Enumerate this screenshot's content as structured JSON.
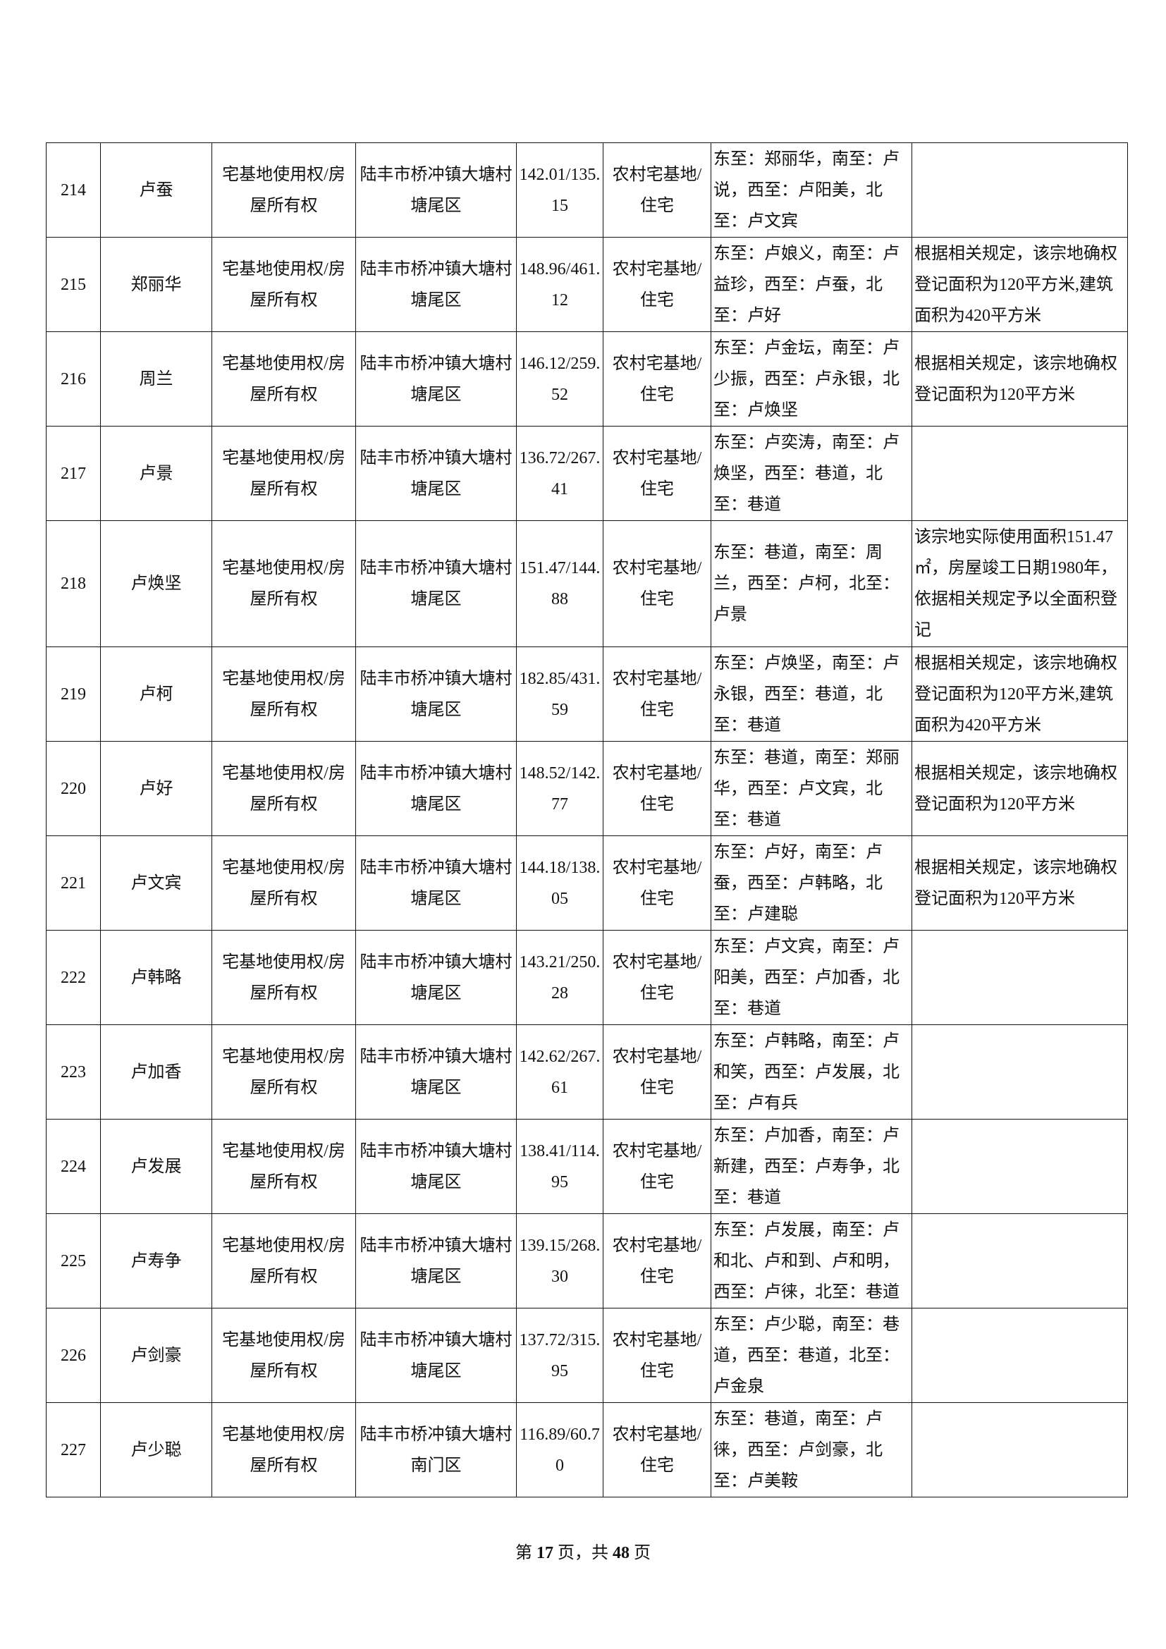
{
  "rows": [
    {
      "no": "214",
      "name": "卢蚕",
      "right_type": "宅基地使用权/房屋所有权",
      "location": "陆丰市桥冲镇大塘村塘尾区",
      "area": "142.01/135.15",
      "use": "农村宅基地/住宅",
      "boundary": "东至：郑丽华，南至：卢说，西至：卢阳美，北至：卢文宾",
      "note": ""
    },
    {
      "no": "215",
      "name": "郑丽华",
      "right_type": "宅基地使用权/房屋所有权",
      "location": "陆丰市桥冲镇大塘村塘尾区",
      "area": "148.96/461.12",
      "use": "农村宅基地/住宅",
      "boundary": "东至：卢娘义，南至：卢益珍，西至：卢蚕，北至：卢好",
      "note": "根据相关规定，该宗地确权登记面积为120平方米,建筑面积为420平方米"
    },
    {
      "no": "216",
      "name": "周兰",
      "right_type": "宅基地使用权/房屋所有权",
      "location": "陆丰市桥冲镇大塘村塘尾区",
      "area": "146.12/259.52",
      "use": "农村宅基地/住宅",
      "boundary": "东至：卢金坛，南至：卢少振，西至：卢永银，北至：卢焕坚",
      "note": "根据相关规定，该宗地确权登记面积为120平方米"
    },
    {
      "no": "217",
      "name": "卢景",
      "right_type": "宅基地使用权/房屋所有权",
      "location": "陆丰市桥冲镇大塘村塘尾区",
      "area": "136.72/267.41",
      "use": "农村宅基地/住宅",
      "boundary": "东至：卢奕涛，南至：卢焕坚，西至：巷道，北至：巷道",
      "note": ""
    },
    {
      "no": "218",
      "name": "卢焕坚",
      "right_type": "宅基地使用权/房屋所有权",
      "location": "陆丰市桥冲镇大塘村塘尾区",
      "area": "151.47/144.88",
      "use": "农村宅基地/住宅",
      "boundary": "东至：巷道，南至：周兰，西至：卢柯，北至：卢景",
      "note": "该宗地实际使用面积151.47㎡，房屋竣工日期1980年，依据相关规定予以全面积登记"
    },
    {
      "no": "219",
      "name": "卢柯",
      "right_type": "宅基地使用权/房屋所有权",
      "location": "陆丰市桥冲镇大塘村塘尾区",
      "area": "182.85/431.59",
      "use": "农村宅基地/住宅",
      "boundary": "东至：卢焕坚，南至：卢永银，西至：巷道，北至：巷道",
      "note": "根据相关规定，该宗地确权登记面积为120平方米,建筑面积为420平方米"
    },
    {
      "no": "220",
      "name": "卢好",
      "right_type": "宅基地使用权/房屋所有权",
      "location": "陆丰市桥冲镇大塘村塘尾区",
      "area": "148.52/142.77",
      "use": "农村宅基地/住宅",
      "boundary": "东至：巷道，南至：郑丽华，西至：卢文宾，北至：巷道",
      "note": "根据相关规定，该宗地确权登记面积为120平方米"
    },
    {
      "no": "221",
      "name": "卢文宾",
      "right_type": "宅基地使用权/房屋所有权",
      "location": "陆丰市桥冲镇大塘村塘尾区",
      "area": "144.18/138.05",
      "use": "农村宅基地/住宅",
      "boundary": "东至：卢好，南至：卢蚕，西至：卢韩略，北至：卢建聪",
      "note": "根据相关规定，该宗地确权登记面积为120平方米"
    },
    {
      "no": "222",
      "name": "卢韩略",
      "right_type": "宅基地使用权/房屋所有权",
      "location": "陆丰市桥冲镇大塘村塘尾区",
      "area": "143.21/250.28",
      "use": "农村宅基地/住宅",
      "boundary": "东至：卢文宾，南至：卢阳美，西至：卢加香，北至：巷道",
      "note": ""
    },
    {
      "no": "223",
      "name": "卢加香",
      "right_type": "宅基地使用权/房屋所有权",
      "location": "陆丰市桥冲镇大塘村塘尾区",
      "area": "142.62/267.61",
      "use": "农村宅基地/住宅",
      "boundary": "东至：卢韩略，南至：卢和笑，西至：卢发展，北至：卢有兵",
      "note": ""
    },
    {
      "no": "224",
      "name": "卢发展",
      "right_type": "宅基地使用权/房屋所有权",
      "location": "陆丰市桥冲镇大塘村塘尾区",
      "area": "138.41/114.95",
      "use": "农村宅基地/住宅",
      "boundary": "东至：卢加香，南至：卢新建，西至：卢寿争，北至：巷道",
      "note": ""
    },
    {
      "no": "225",
      "name": "卢寿争",
      "right_type": "宅基地使用权/房屋所有权",
      "location": "陆丰市桥冲镇大塘村塘尾区",
      "area": "139.15/268.30",
      "use": "农村宅基地/住宅",
      "boundary": "东至：卢发展，南至：卢和北、卢和到、卢和明，西至：卢徕，北至：巷道",
      "note": ""
    },
    {
      "no": "226",
      "name": "卢剑豪",
      "right_type": "宅基地使用权/房屋所有权",
      "location": "陆丰市桥冲镇大塘村塘尾区",
      "area": "137.72/315.95",
      "use": "农村宅基地/住宅",
      "boundary": "东至：卢少聪，南至：巷道，西至：巷道，北至：卢金泉",
      "note": ""
    },
    {
      "no": "227",
      "name": "卢少聪",
      "right_type": "宅基地使用权/房屋所有权",
      "location": "陆丰市桥冲镇大塘村南门区",
      "area": "116.89/60.70",
      "use": "农村宅基地/住宅",
      "boundary": "东至：巷道，南至：卢徕，西至：卢剑豪，北至：卢美鞍",
      "note": ""
    }
  ],
  "footer": {
    "prefix": "第",
    "page": "17",
    "middle": "页，共",
    "total": "48",
    "suffix": "页"
  }
}
